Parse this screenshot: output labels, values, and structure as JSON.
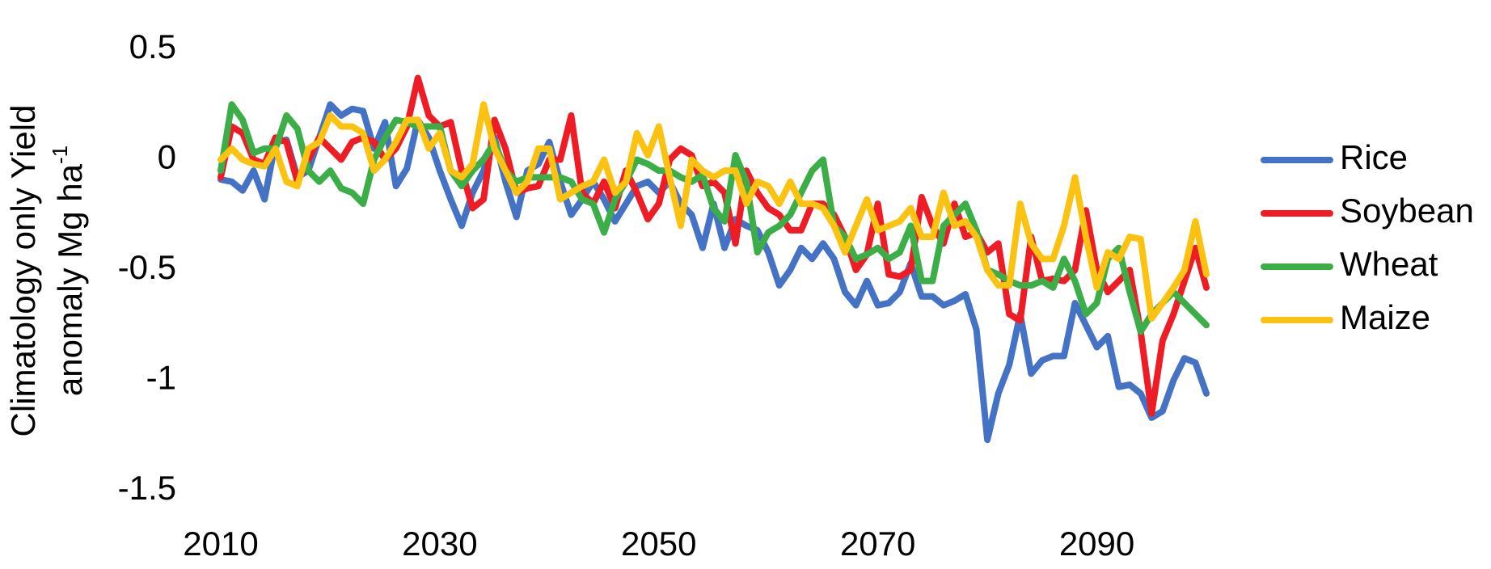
{
  "chart_data": {
    "type": "line",
    "ylabel_lines": [
      "Climatology only Yield",
      "anomaly Mg ha"
    ],
    "ylabel_superscript": "-1",
    "x": [
      2010,
      2011,
      2012,
      2013,
      2014,
      2015,
      2016,
      2017,
      2018,
      2019,
      2020,
      2021,
      2022,
      2023,
      2024,
      2025,
      2026,
      2027,
      2028,
      2029,
      2030,
      2031,
      2032,
      2033,
      2034,
      2035,
      2036,
      2037,
      2038,
      2039,
      2040,
      2041,
      2042,
      2043,
      2044,
      2045,
      2046,
      2047,
      2048,
      2049,
      2050,
      2051,
      2052,
      2053,
      2054,
      2055,
      2056,
      2057,
      2058,
      2059,
      2060,
      2061,
      2062,
      2063,
      2064,
      2065,
      2066,
      2067,
      2068,
      2069,
      2070,
      2071,
      2072,
      2073,
      2074,
      2075,
      2076,
      2077,
      2078,
      2079,
      2080,
      2081,
      2082,
      2083,
      2084,
      2085,
      2086,
      2087,
      2088,
      2089,
      2090,
      2091,
      2092,
      2093,
      2094,
      2095,
      2096,
      2097,
      2098,
      2099,
      2100
    ],
    "xlim": [
      2010,
      2100
    ],
    "xticks": [
      2010,
      2030,
      2050,
      2070,
      2090
    ],
    "ylim": [
      -1.5,
      0.5
    ],
    "yticks": [
      0.5,
      0,
      -0.5,
      -1,
      -1.5
    ],
    "grid": false,
    "legend": "right",
    "series": [
      {
        "name": "Rice",
        "color": "#4472c4",
        "values": [
          -0.09,
          -0.1,
          -0.14,
          -0.05,
          -0.18,
          0.08,
          0.09,
          -0.08,
          -0.05,
          0.1,
          0.25,
          0.2,
          0.23,
          0.22,
          0.05,
          0.17,
          -0.12,
          -0.04,
          0.18,
          0.1,
          -0.05,
          -0.18,
          -0.3,
          -0.15,
          -0.05,
          0.1,
          -0.1,
          -0.26,
          -0.05,
          -0.02,
          0.08,
          -0.1,
          -0.25,
          -0.18,
          -0.1,
          -0.18,
          -0.28,
          -0.2,
          -0.12,
          -0.1,
          -0.15,
          -0.1,
          -0.2,
          -0.25,
          -0.4,
          -0.2,
          -0.4,
          -0.27,
          -0.3,
          -0.32,
          -0.42,
          -0.57,
          -0.5,
          -0.4,
          -0.45,
          -0.38,
          -0.45,
          -0.6,
          -0.66,
          -0.55,
          -0.66,
          -0.65,
          -0.6,
          -0.47,
          -0.62,
          -0.62,
          -0.66,
          -0.64,
          -0.61,
          -0.77,
          -1.27,
          -1.06,
          -0.93,
          -0.7,
          -0.97,
          -0.91,
          -0.89,
          -0.89,
          -0.65,
          -0.75,
          -0.85,
          -0.8,
          -1.03,
          -1.02,
          -1.06,
          -1.17,
          -1.14,
          -1.0,
          -0.9,
          -0.92,
          -1.06
        ]
      },
      {
        "name": "Soybean",
        "color": "#ee1c25",
        "values": [
          -0.08,
          0.15,
          0.12,
          0.0,
          -0.02,
          0.1,
          0.08,
          -0.1,
          0.0,
          0.1,
          0.05,
          0.0,
          0.08,
          0.1,
          0.08,
          0.0,
          0.05,
          0.15,
          0.37,
          0.2,
          0.15,
          0.17,
          -0.05,
          -0.22,
          -0.18,
          0.18,
          0.05,
          -0.15,
          -0.13,
          -0.12,
          0.0,
          0.0,
          0.2,
          -0.15,
          -0.2,
          -0.1,
          -0.22,
          -0.05,
          -0.15,
          -0.27,
          -0.2,
          0.0,
          0.05,
          0.02,
          -0.12,
          -0.1,
          -0.15,
          -0.38,
          -0.05,
          -0.15,
          -0.22,
          -0.25,
          -0.32,
          -0.32,
          -0.2,
          -0.2,
          -0.25,
          -0.35,
          -0.5,
          -0.43,
          -0.2,
          -0.52,
          -0.53,
          -0.5,
          -0.17,
          -0.3,
          -0.38,
          -0.2,
          -0.35,
          -0.33,
          -0.42,
          -0.38,
          -0.7,
          -0.73,
          -0.35,
          -0.55,
          -0.54,
          -0.55,
          -0.5,
          -0.23,
          -0.5,
          -0.6,
          -0.55,
          -0.5,
          -0.78,
          -1.15,
          -0.82,
          -0.7,
          -0.55,
          -0.4,
          -0.58
        ]
      },
      {
        "name": "Wheat",
        "color": "#3cae48",
        "values": [
          -0.05,
          0.25,
          0.18,
          0.03,
          0.05,
          0.05,
          0.2,
          0.14,
          -0.05,
          -0.1,
          -0.05,
          -0.13,
          -0.15,
          -0.2,
          0.0,
          0.1,
          0.18,
          0.17,
          0.15,
          0.15,
          0.15,
          -0.05,
          -0.12,
          -0.05,
          0.0,
          0.08,
          -0.05,
          -0.1,
          -0.08,
          -0.08,
          -0.08,
          -0.08,
          -0.1,
          -0.18,
          -0.2,
          -0.33,
          -0.18,
          -0.1,
          0.0,
          -0.02,
          -0.05,
          -0.05,
          -0.08,
          -0.1,
          -0.07,
          -0.22,
          -0.28,
          0.02,
          -0.1,
          -0.42,
          -0.33,
          -0.3,
          -0.25,
          -0.15,
          -0.05,
          0.0,
          -0.3,
          -0.35,
          -0.45,
          -0.43,
          -0.4,
          -0.45,
          -0.42,
          -0.3,
          -0.55,
          -0.55,
          -0.3,
          -0.25,
          -0.2,
          -0.32,
          -0.5,
          -0.52,
          -0.55,
          -0.57,
          -0.57,
          -0.55,
          -0.58,
          -0.45,
          -0.55,
          -0.7,
          -0.65,
          -0.45,
          -0.4,
          -0.6,
          -0.78,
          -0.7,
          -0.65,
          -0.6,
          -0.65,
          -0.7,
          -0.75
        ]
      },
      {
        "name": "Maize",
        "color": "#fbc212",
        "values": [
          0.0,
          0.05,
          0.0,
          -0.02,
          -0.03,
          0.05,
          -0.1,
          -0.12,
          0.05,
          0.08,
          0.2,
          0.15,
          0.15,
          0.12,
          -0.05,
          0.0,
          0.08,
          0.18,
          0.18,
          0.05,
          0.12,
          -0.05,
          -0.08,
          -0.02,
          0.25,
          0.05,
          -0.05,
          -0.15,
          -0.1,
          0.05,
          0.05,
          -0.18,
          -0.15,
          -0.12,
          -0.1,
          0.0,
          -0.15,
          -0.1,
          0.12,
          0.02,
          0.15,
          -0.08,
          -0.3,
          0.0,
          -0.05,
          -0.08,
          -0.05,
          -0.05,
          -0.2,
          -0.1,
          -0.12,
          -0.2,
          -0.1,
          -0.2,
          -0.2,
          -0.22,
          -0.3,
          -0.42,
          -0.3,
          -0.18,
          -0.32,
          -0.3,
          -0.28,
          -0.22,
          -0.35,
          -0.35,
          -0.15,
          -0.3,
          -0.28,
          -0.35,
          -0.5,
          -0.57,
          -0.57,
          -0.2,
          -0.38,
          -0.45,
          -0.45,
          -0.3,
          -0.08,
          -0.35,
          -0.58,
          -0.42,
          -0.45,
          -0.35,
          -0.36,
          -0.72,
          -0.65,
          -0.58,
          -0.5,
          -0.28,
          -0.52
        ]
      }
    ]
  }
}
